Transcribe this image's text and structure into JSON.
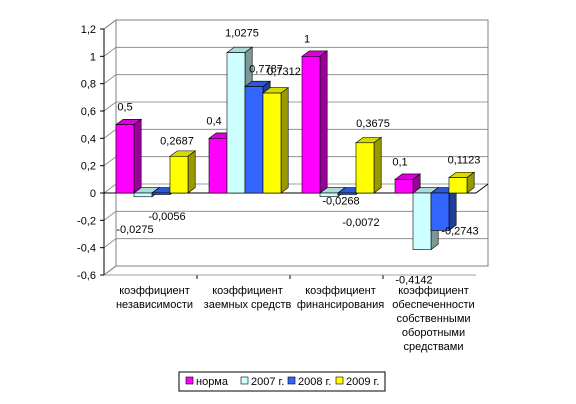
{
  "chart_data": {
    "type": "bar",
    "categories": [
      [
        "коэффициент",
        "независимости"
      ],
      [
        "коэффициент",
        "заемных средств"
      ],
      [
        "коэффициент",
        "финансирования"
      ],
      [
        "коэффициент",
        "обеспеченности",
        "собственными",
        "оборотными",
        "средствами"
      ]
    ],
    "series": [
      {
        "name": "норма",
        "color": "#ff00ff",
        "values": [
          0.5,
          0.4,
          1,
          0.1
        ],
        "labels": [
          "0,5",
          "0,4",
          "1",
          "0,1"
        ]
      },
      {
        "name": "2007 г.",
        "color": "#ccffff",
        "values": [
          -0.0275,
          1.0275,
          -0.0268,
          -0.4142
        ],
        "labels": [
          "-0,0275",
          "1,0275",
          "-0,0268",
          "-0,4142"
        ]
      },
      {
        "name": "2008 г.",
        "color": "#3366ff",
        "values": [
          -0.0056,
          0.7787,
          -0.0072,
          -0.2743
        ],
        "labels": [
          "-0,0056",
          "0,7787",
          "-0,0072",
          "-0,2743"
        ]
      },
      {
        "name": "2009 г.",
        "color": "#ffff00",
        "values": [
          0.2687,
          0.7312,
          0.3675,
          0.1123
        ],
        "labels": [
          "0,2687",
          "0,7312",
          "0,3675",
          "0,1123"
        ]
      }
    ],
    "ylim": [
      -0.6,
      1.2
    ],
    "yticks": [
      "-0,6",
      "-0,4",
      "-0,2",
      "0",
      "0,2",
      "0,4",
      "0,6",
      "0,8",
      "1",
      "1,2"
    ],
    "grid": true,
    "legend": "bottom"
  }
}
